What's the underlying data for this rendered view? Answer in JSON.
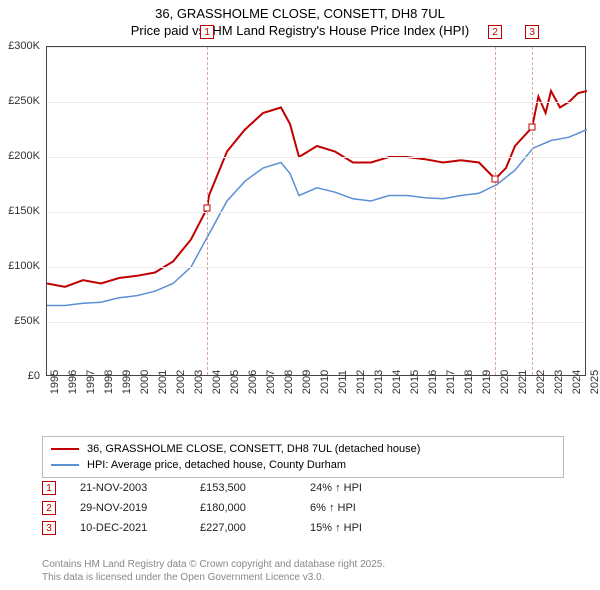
{
  "title_line1": "36, GRASSHOLME CLOSE, CONSETT, DH8 7UL",
  "title_line2": "Price paid vs. HM Land Registry's House Price Index (HPI)",
  "chart": {
    "type": "line",
    "background_color": "#ffffff",
    "axis_color": "#444444",
    "grid_color": "#f0ecec",
    "vline_color": "#d9a5a5",
    "label_fontsize": 11,
    "title_fontsize": 13,
    "ylim": [
      0,
      300000
    ],
    "ytick_step": 50000,
    "yticks": [
      "£0",
      "£50K",
      "£100K",
      "£150K",
      "£200K",
      "£250K",
      "£300K"
    ],
    "xlim": [
      1995,
      2025
    ],
    "xticks": [
      1995,
      1996,
      1997,
      1998,
      1999,
      2000,
      2001,
      2002,
      2003,
      2004,
      2005,
      2006,
      2007,
      2008,
      2009,
      2010,
      2011,
      2012,
      2013,
      2014,
      2015,
      2016,
      2017,
      2018,
      2019,
      2020,
      2021,
      2022,
      2023,
      2024,
      2025
    ],
    "series": [
      {
        "name": "36, GRASSHOLME CLOSE, CONSETT, DH8 7UL (detached house)",
        "color": "#c00000",
        "line_width": 2,
        "points": [
          [
            1995,
            85000
          ],
          [
            1996,
            82000
          ],
          [
            1997,
            88000
          ],
          [
            1998,
            85000
          ],
          [
            1999,
            90000
          ],
          [
            2000,
            92000
          ],
          [
            2001,
            95000
          ],
          [
            2002,
            105000
          ],
          [
            2003,
            125000
          ],
          [
            2003.9,
            153500
          ],
          [
            2004,
            165000
          ],
          [
            2005,
            205000
          ],
          [
            2006,
            225000
          ],
          [
            2007,
            240000
          ],
          [
            2008,
            245000
          ],
          [
            2008.5,
            230000
          ],
          [
            2009,
            200000
          ],
          [
            2010,
            210000
          ],
          [
            2011,
            205000
          ],
          [
            2012,
            195000
          ],
          [
            2013,
            195000
          ],
          [
            2014,
            200000
          ],
          [
            2015,
            200000
          ],
          [
            2016,
            198000
          ],
          [
            2017,
            195000
          ],
          [
            2018,
            197000
          ],
          [
            2019,
            195000
          ],
          [
            2019.9,
            180000
          ],
          [
            2020.5,
            190000
          ],
          [
            2021,
            210000
          ],
          [
            2021.95,
            227000
          ],
          [
            2022.3,
            255000
          ],
          [
            2022.7,
            240000
          ],
          [
            2023,
            260000
          ],
          [
            2023.5,
            245000
          ],
          [
            2024,
            250000
          ],
          [
            2024.5,
            258000
          ],
          [
            2025,
            260000
          ]
        ]
      },
      {
        "name": "HPI: Average price, detached house, County Durham",
        "color": "#5b8fd6",
        "line_width": 1.5,
        "points": [
          [
            1995,
            65000
          ],
          [
            1996,
            65000
          ],
          [
            1997,
            67000
          ],
          [
            1998,
            68000
          ],
          [
            1999,
            72000
          ],
          [
            2000,
            74000
          ],
          [
            2001,
            78000
          ],
          [
            2002,
            85000
          ],
          [
            2003,
            100000
          ],
          [
            2004,
            130000
          ],
          [
            2005,
            160000
          ],
          [
            2006,
            178000
          ],
          [
            2007,
            190000
          ],
          [
            2008,
            195000
          ],
          [
            2008.5,
            185000
          ],
          [
            2009,
            165000
          ],
          [
            2010,
            172000
          ],
          [
            2011,
            168000
          ],
          [
            2012,
            162000
          ],
          [
            2013,
            160000
          ],
          [
            2014,
            165000
          ],
          [
            2015,
            165000
          ],
          [
            2016,
            163000
          ],
          [
            2017,
            162000
          ],
          [
            2018,
            165000
          ],
          [
            2019,
            167000
          ],
          [
            2020,
            175000
          ],
          [
            2021,
            188000
          ],
          [
            2022,
            208000
          ],
          [
            2023,
            215000
          ],
          [
            2024,
            218000
          ],
          [
            2025,
            225000
          ]
        ]
      }
    ],
    "sale_markers": [
      {
        "n": "1",
        "x": 2003.9,
        "y": 153500
      },
      {
        "n": "2",
        "x": 2019.9,
        "y": 180000
      },
      {
        "n": "3",
        "x": 2021.95,
        "y": 227000
      }
    ]
  },
  "legend": {
    "border_color": "#bbbbbb",
    "items": [
      {
        "color": "#c00000",
        "label": "36, GRASSHOLME CLOSE, CONSETT, DH8 7UL (detached house)"
      },
      {
        "color": "#5b8fd6",
        "label": "HPI: Average price, detached house, County Durham"
      }
    ]
  },
  "sales": [
    {
      "n": "1",
      "date": "21-NOV-2003",
      "price": "£153,500",
      "pct": "24% ↑ HPI"
    },
    {
      "n": "2",
      "date": "29-NOV-2019",
      "price": "£180,000",
      "pct": "6% ↑ HPI"
    },
    {
      "n": "3",
      "date": "10-DEC-2021",
      "price": "£227,000",
      "pct": "15% ↑ HPI"
    }
  ],
  "footer_line1": "Contains HM Land Registry data © Crown copyright and database right 2025.",
  "footer_line2": "This data is licensed under the Open Government Licence v3.0."
}
